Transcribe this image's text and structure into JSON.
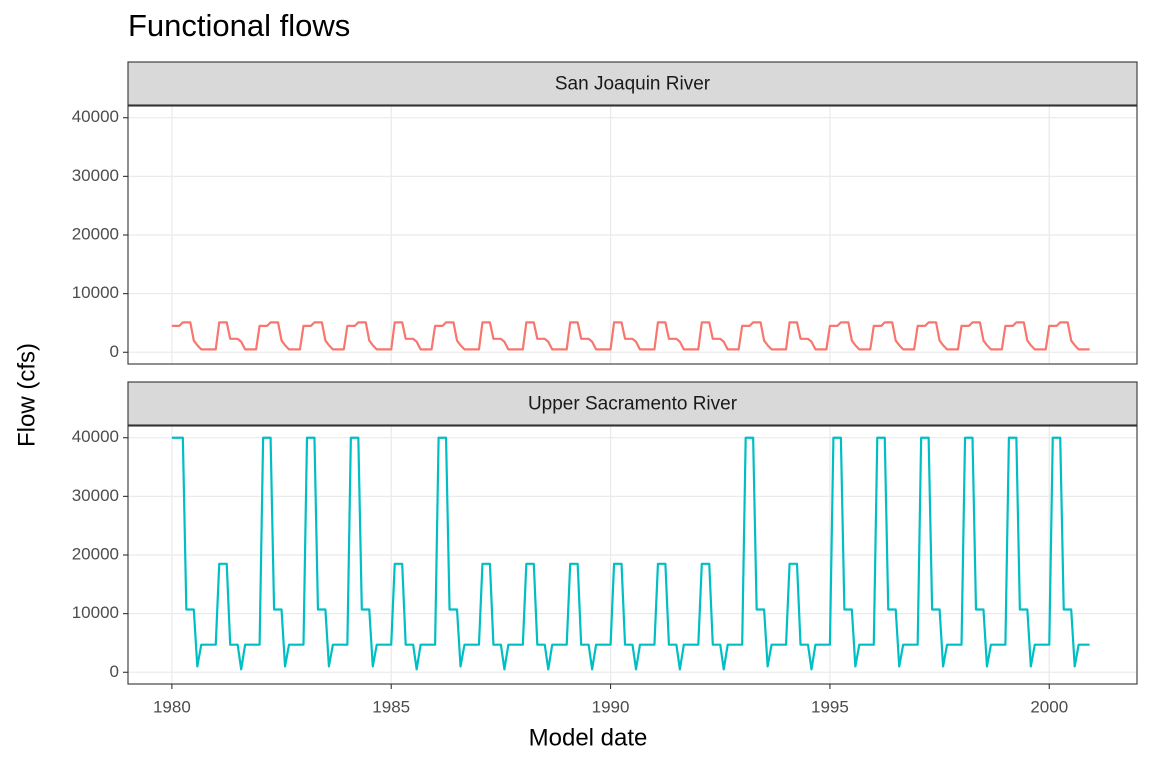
{
  "chart_data": {
    "type": "line",
    "title": "Functional flows",
    "xlabel": "Model date",
    "ylabel": "Flow (cfs)",
    "x": [
      1980,
      1980.08,
      1980.17,
      1980.25,
      1980.33,
      1980.42,
      1980.5,
      1980.58,
      1980.67,
      1980.75,
      1980.83,
      1980.92,
      1981,
      1981.08,
      1981.17,
      1981.25,
      1981.33,
      1981.42,
      1981.5,
      1981.58,
      1981.67,
      1981.75,
      1981.83,
      1981.92,
      1982,
      1982.08,
      1982.17,
      1982.25,
      1982.33,
      1982.42,
      1982.5,
      1982.58,
      1982.67,
      1982.75,
      1982.83,
      1982.92,
      1983,
      1983.08,
      1983.17,
      1983.25,
      1983.33,
      1983.42,
      1983.5,
      1983.58,
      1983.67,
      1983.75,
      1983.83,
      1983.92,
      1984,
      1984.08,
      1984.17,
      1984.25,
      1984.33,
      1984.42,
      1984.5,
      1984.58,
      1984.67,
      1984.75,
      1984.83,
      1984.92,
      1985,
      1985.08,
      1985.17,
      1985.25,
      1985.33,
      1985.42,
      1985.5,
      1985.58,
      1985.67,
      1985.75,
      1985.83,
      1985.92,
      1986,
      1986.08,
      1986.17,
      1986.25,
      1986.33,
      1986.42,
      1986.5,
      1986.58,
      1986.67,
      1986.75,
      1986.83,
      1986.92,
      1987,
      1987.08,
      1987.17,
      1987.25,
      1987.33,
      1987.42,
      1987.5,
      1987.58,
      1987.67,
      1987.75,
      1987.83,
      1987.92,
      1988,
      1988.08,
      1988.17,
      1988.25,
      1988.33,
      1988.42,
      1988.5,
      1988.58,
      1988.67,
      1988.75,
      1988.83,
      1988.92,
      1989,
      1989.08,
      1989.17,
      1989.25,
      1989.33,
      1989.42,
      1989.5,
      1989.58,
      1989.67,
      1989.75,
      1989.83,
      1989.92,
      1990,
      1990.08,
      1990.17,
      1990.25,
      1990.33,
      1990.42,
      1990.5,
      1990.58,
      1990.67,
      1990.75,
      1990.83,
      1990.92,
      1991,
      1991.08,
      1991.17,
      1991.25,
      1991.33,
      1991.42,
      1991.5,
      1991.58,
      1991.67,
      1991.75,
      1991.83,
      1991.92,
      1992,
      1992.08,
      1992.17,
      1992.25,
      1992.33,
      1992.42,
      1992.5,
      1992.58,
      1992.67,
      1992.75,
      1992.83,
      1992.92,
      1993,
      1993.08,
      1993.17,
      1993.25,
      1993.33,
      1993.42,
      1993.5,
      1993.58,
      1993.67,
      1993.75,
      1993.83,
      1993.92,
      1994,
      1994.08,
      1994.17,
      1994.25,
      1994.33,
      1994.42,
      1994.5,
      1994.58,
      1994.67,
      1994.75,
      1994.83,
      1994.92,
      1995,
      1995.08,
      1995.17,
      1995.25,
      1995.33,
      1995.42,
      1995.5,
      1995.58,
      1995.67,
      1995.75,
      1995.83,
      1995.92,
      1996,
      1996.08,
      1996.17,
      1996.25,
      1996.33,
      1996.42,
      1996.5,
      1996.58,
      1996.67,
      1996.75,
      1996.83,
      1996.92,
      1997,
      1997.08,
      1997.17,
      1997.25,
      1997.33,
      1997.42,
      1997.5,
      1997.58,
      1997.67,
      1997.75,
      1997.83,
      1997.92,
      1998,
      1998.08,
      1998.17,
      1998.25,
      1998.33,
      1998.42,
      1998.5,
      1998.58,
      1998.67,
      1998.75,
      1998.83,
      1998.92,
      1999,
      1999.08,
      1999.17,
      1999.25,
      1999.33,
      1999.42,
      1999.5,
      1999.58,
      1999.67,
      1999.75,
      1999.83,
      1999.92,
      2000,
      2000.08,
      2000.17,
      2000.25,
      2000.33,
      2000.42,
      2000.5,
      2000.58,
      2000.67,
      2000.75,
      2000.83,
      2000.92
    ],
    "xlim": [
      1979,
      2002
    ],
    "xticks": [
      1980,
      1985,
      1990,
      1995,
      2000
    ],
    "ylim": [
      -2000,
      42000
    ],
    "yticks": [
      0,
      10000,
      20000,
      30000,
      40000
    ],
    "grid": true,
    "series": [
      {
        "name": "San Joaquin River",
        "color": "#f8766d",
        "values": [
          4500,
          4500,
          4500,
          5100,
          5100,
          5100,
          2000,
          1200,
          500,
          500,
          500,
          500,
          500,
          5100,
          5100,
          5100,
          2300,
          2300,
          2300,
          1800,
          500,
          500,
          500,
          500,
          4500,
          4500,
          4500,
          5100,
          5100,
          5100,
          2000,
          1200,
          500,
          500,
          500,
          500,
          4500,
          4500,
          4500,
          5100,
          5100,
          5100,
          2000,
          1200,
          500,
          500,
          500,
          500,
          4500,
          4500,
          4500,
          5100,
          5100,
          5100,
          2000,
          1200,
          500,
          500,
          500,
          500,
          500,
          5100,
          5100,
          5100,
          2300,
          2300,
          2300,
          1800,
          500,
          500,
          500,
          500,
          4500,
          4500,
          4500,
          5100,
          5100,
          5100,
          2000,
          1200,
          500,
          500,
          500,
          500,
          500,
          5100,
          5100,
          5100,
          2300,
          2300,
          2300,
          1800,
          500,
          500,
          500,
          500,
          500,
          5100,
          5100,
          5100,
          2300,
          2300,
          2300,
          1800,
          500,
          500,
          500,
          500,
          500,
          5100,
          5100,
          5100,
          2300,
          2300,
          2300,
          1800,
          500,
          500,
          500,
          500,
          500,
          5100,
          5100,
          5100,
          2300,
          2300,
          2300,
          1800,
          500,
          500,
          500,
          500,
          500,
          5100,
          5100,
          5100,
          2300,
          2300,
          2300,
          1800,
          500,
          500,
          500,
          500,
          500,
          5100,
          5100,
          5100,
          2300,
          2300,
          2300,
          1800,
          500,
          500,
          500,
          500,
          4500,
          4500,
          4500,
          5100,
          5100,
          5100,
          2000,
          1200,
          500,
          500,
          500,
          500,
          500,
          5100,
          5100,
          5100,
          2300,
          2300,
          2300,
          1800,
          500,
          500,
          500,
          500,
          4500,
          4500,
          4500,
          5100,
          5100,
          5100,
          2000,
          1200,
          500,
          500,
          500,
          500,
          4500,
          4500,
          4500,
          5100,
          5100,
          5100,
          2000,
          1200,
          500,
          500,
          500,
          500,
          4500,
          4500,
          4500,
          5100,
          5100,
          5100,
          2000,
          1200,
          500,
          500,
          500,
          500,
          4500,
          4500,
          4500,
          5100,
          5100,
          5100,
          2000,
          1200,
          500,
          500,
          500,
          500,
          4500,
          4500,
          4500,
          5100,
          5100,
          5100,
          2000,
          1200,
          500,
          500,
          500,
          500,
          4500,
          4500,
          4500,
          5100,
          5100,
          5100,
          2000,
          1200,
          500,
          500,
          500,
          500
        ]
      },
      {
        "name": "Upper Sacramento River",
        "color": "#00bfc4",
        "values": [
          40000,
          40000,
          40000,
          40000,
          10700,
          10700,
          10700,
          1000,
          4700,
          4700,
          4700,
          4700,
          4700,
          18500,
          18500,
          18500,
          4700,
          4700,
          4700,
          500,
          4700,
          4700,
          4700,
          4700,
          4700,
          40000,
          40000,
          40000,
          10700,
          10700,
          10700,
          1000,
          4700,
          4700,
          4700,
          4700,
          4700,
          40000,
          40000,
          40000,
          10700,
          10700,
          10700,
          1000,
          4700,
          4700,
          4700,
          4700,
          4700,
          40000,
          40000,
          40000,
          10700,
          10700,
          10700,
          1000,
          4700,
          4700,
          4700,
          4700,
          4700,
          18500,
          18500,
          18500,
          4700,
          4700,
          4700,
          500,
          4700,
          4700,
          4700,
          4700,
          4700,
          40000,
          40000,
          40000,
          10700,
          10700,
          10700,
          1000,
          4700,
          4700,
          4700,
          4700,
          4700,
          18500,
          18500,
          18500,
          4700,
          4700,
          4700,
          500,
          4700,
          4700,
          4700,
          4700,
          4700,
          18500,
          18500,
          18500,
          4700,
          4700,
          4700,
          500,
          4700,
          4700,
          4700,
          4700,
          4700,
          18500,
          18500,
          18500,
          4700,
          4700,
          4700,
          500,
          4700,
          4700,
          4700,
          4700,
          4700,
          18500,
          18500,
          18500,
          4700,
          4700,
          4700,
          500,
          4700,
          4700,
          4700,
          4700,
          4700,
          18500,
          18500,
          18500,
          4700,
          4700,
          4700,
          500,
          4700,
          4700,
          4700,
          4700,
          4700,
          18500,
          18500,
          18500,
          4700,
          4700,
          4700,
          500,
          4700,
          4700,
          4700,
          4700,
          4700,
          40000,
          40000,
          40000,
          10700,
          10700,
          10700,
          1000,
          4700,
          4700,
          4700,
          4700,
          4700,
          18500,
          18500,
          18500,
          4700,
          4700,
          4700,
          500,
          4700,
          4700,
          4700,
          4700,
          4700,
          40000,
          40000,
          40000,
          10700,
          10700,
          10700,
          1000,
          4700,
          4700,
          4700,
          4700,
          4700,
          40000,
          40000,
          40000,
          10700,
          10700,
          10700,
          1000,
          4700,
          4700,
          4700,
          4700,
          4700,
          40000,
          40000,
          40000,
          10700,
          10700,
          10700,
          1000,
          4700,
          4700,
          4700,
          4700,
          4700,
          40000,
          40000,
          40000,
          10700,
          10700,
          10700,
          1000,
          4700,
          4700,
          4700,
          4700,
          4700,
          40000,
          40000,
          40000,
          10700,
          10700,
          10700,
          1000,
          4700,
          4700,
          4700,
          4700,
          4700,
          40000,
          40000,
          40000,
          10700,
          10700,
          10700,
          1000,
          4700,
          4700,
          4700,
          4700
        ]
      }
    ]
  }
}
